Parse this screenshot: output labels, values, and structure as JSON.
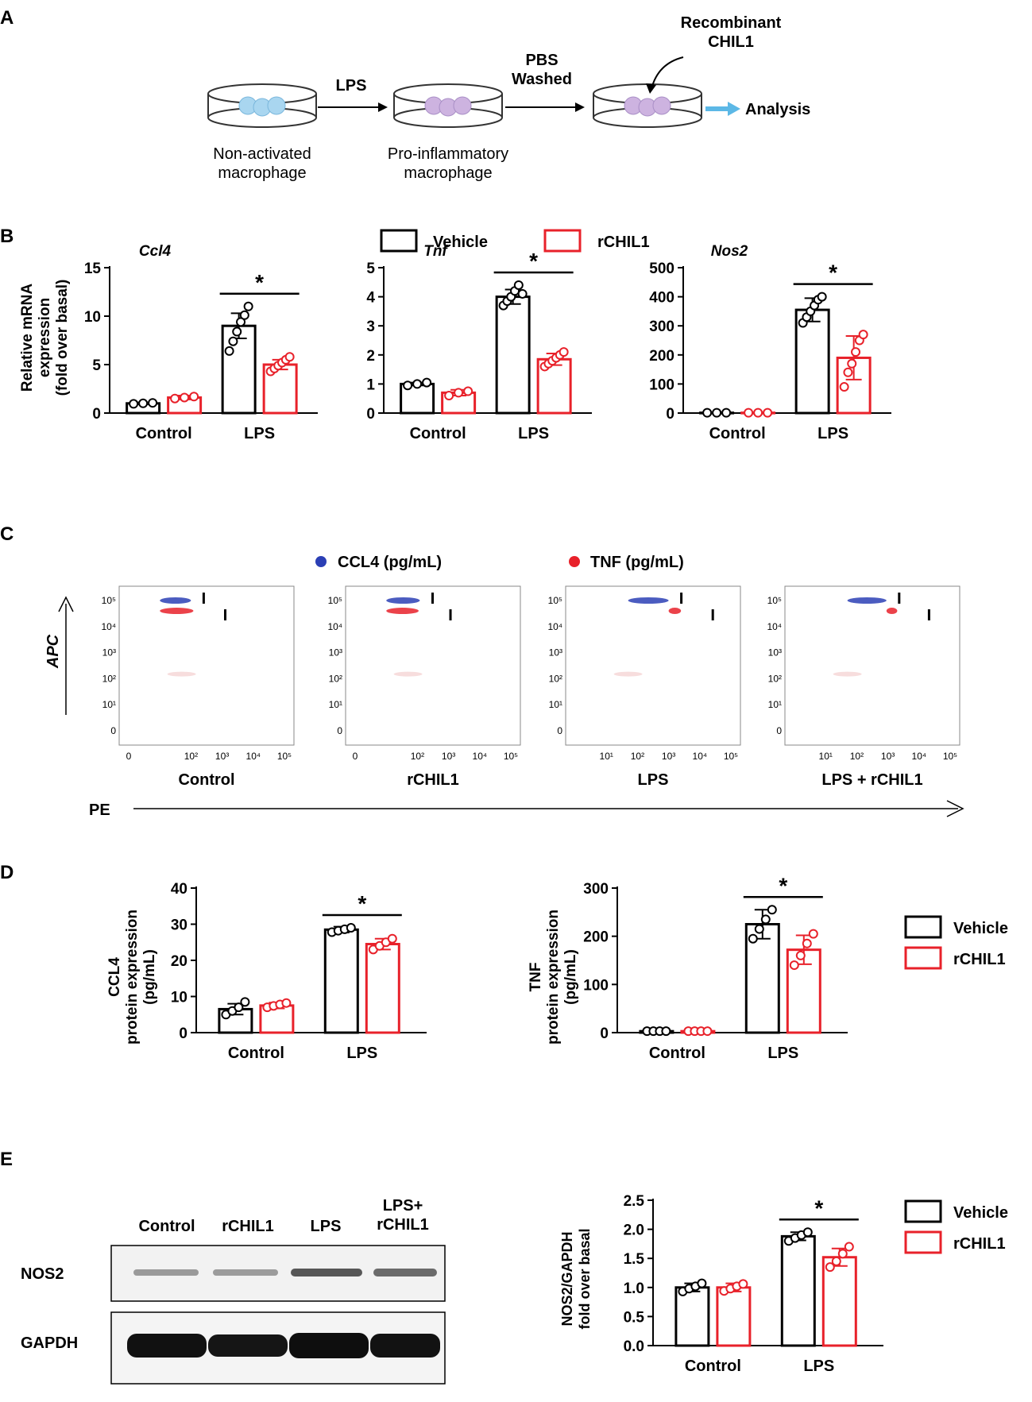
{
  "panels": {
    "a": {
      "label": "A",
      "step1": "LPS",
      "step2_line1": "PBS",
      "step2_line2": "Washed",
      "step3_line1": "Recombinant",
      "step3_line2": "CHIL1",
      "cell1_line1": "Non-activated",
      "cell1_line2": "macrophage",
      "cell2_line1": "Pro-inflammatory",
      "cell2_line2": "macrophage",
      "analysis": "Analysis"
    },
    "b": {
      "label": "B",
      "ylabel_line1": "Relative mRNA",
      "ylabel_line2": "expression",
      "ylabel_line3": "(fold over basal)"
    },
    "c": {
      "label": "C",
      "legend_ccl4": "CCL4 (pg/mL)",
      "legend_tnf": "TNF (pg/mL)",
      "y_axis": "APC",
      "x_axis": "PE",
      "y_ticks": [
        "10⁵",
        "10⁴",
        "10³",
        "10²",
        "10¹",
        "0"
      ],
      "x_ticks_a": [
        "0",
        "10²",
        "10³",
        "10⁴",
        "10⁵"
      ],
      "x_ticks_b": [
        "10¹",
        "10²",
        "10³",
        "10⁴",
        "10⁵"
      ],
      "plot_labels": [
        "Control",
        "rCHIL1",
        "LPS",
        "LPS + rCHIL1"
      ]
    },
    "d": {
      "label": "D",
      "ccl4_ylabel1": "CCL4",
      "ccl4_ylabel2": "protein expression",
      "ccl4_ylabel3": "(pg/mL)",
      "tnf_ylabel1": "TNF",
      "tnf_ylabel2": "protein expression",
      "tnf_ylabel3": "(pg/mL)"
    },
    "e": {
      "label": "E",
      "lane_labels": [
        "Control",
        "rCHIL1",
        "LPS"
      ],
      "lane4_line1": "LPS+",
      "lane4_line2": "rCHIL1",
      "nos2_row": "NOS2",
      "gapdh_row": "GAPDH",
      "ylabel1": "NOS2/GAPDH",
      "ylabel2": "fold over basal"
    }
  },
  "legend": {
    "vehicle": "Vehicle",
    "rchil1": "rCHIL1"
  },
  "colors": {
    "vehicle": "#000000",
    "rchil1": "#e8212a",
    "ccl4_dot": "#2b3fb5",
    "tnf_dot": "#e8212a",
    "arrow_blue": "#5cb8e6"
  },
  "chart_data": [
    {
      "type": "bar",
      "id": "ccl4_mrna",
      "title": "Ccl4",
      "categories": [
        "Control",
        "LPS"
      ],
      "ylim": [
        0,
        15
      ],
      "yticks": [
        0,
        5,
        10,
        15
      ],
      "series": [
        {
          "name": "Vehicle",
          "values": [
            1,
            9.0
          ],
          "err": [
            0.1,
            1.3
          ],
          "points": [
            [
              0.95,
              1.0,
              1.05
            ],
            [
              6.4,
              7.4,
              8.4,
              9.4,
              10.1,
              11.0
            ]
          ]
        },
        {
          "name": "rCHIL1",
          "values": [
            1.6,
            5.0
          ],
          "err": [
            0.2,
            0.5
          ],
          "points": [
            [
              1.5,
              1.6,
              1.7
            ],
            [
              4.3,
              4.6,
              4.9,
              5.2,
              5.5,
              5.8
            ]
          ]
        }
      ],
      "significance": "*"
    },
    {
      "type": "bar",
      "id": "tnf_mrna",
      "title": "Tnf",
      "categories": [
        "Control",
        "LPS"
      ],
      "ylim": [
        0,
        5
      ],
      "yticks": [
        0,
        1,
        2,
        3,
        4,
        5
      ],
      "series": [
        {
          "name": "Vehicle",
          "values": [
            1.0,
            4.0
          ],
          "err": [
            0.05,
            0.25
          ],
          "points": [
            [
              0.95,
              1.0,
              1.05
            ],
            [
              3.7,
              3.85,
              4.0,
              4.2,
              4.4,
              4.1
            ]
          ]
        },
        {
          "name": "rCHIL1",
          "values": [
            0.7,
            1.85
          ],
          "err": [
            0.1,
            0.2
          ],
          "points": [
            [
              0.6,
              0.7,
              0.75
            ],
            [
              1.6,
              1.7,
              1.8,
              1.9,
              2.0,
              2.1
            ]
          ]
        }
      ],
      "significance": "*"
    },
    {
      "type": "bar",
      "id": "nos2_mrna",
      "title": "Nos2",
      "categories": [
        "Control",
        "LPS"
      ],
      "ylim": [
        0,
        500
      ],
      "yticks": [
        0,
        100,
        200,
        300,
        400,
        500
      ],
      "series": [
        {
          "name": "Vehicle",
          "values": [
            1,
            355
          ],
          "err": [
            0,
            40
          ],
          "points": [
            [
              1,
              1,
              1
            ],
            [
              310,
              330,
              350,
              370,
              390,
              400
            ]
          ]
        },
        {
          "name": "rCHIL1",
          "values": [
            1,
            190
          ],
          "err": [
            0,
            75
          ],
          "points": [
            [
              1,
              1,
              1
            ],
            [
              90,
              140,
              170,
              210,
              250,
              270
            ]
          ]
        }
      ],
      "significance": "*"
    },
    {
      "type": "scatter",
      "id": "flow_control",
      "title": "Control",
      "series": [
        {
          "name": "CCL4",
          "x_range": [
            10,
            100
          ],
          "y": 100000
        },
        {
          "name": "TNF",
          "x_range": [
            10,
            120
          ],
          "y": 40000
        }
      ]
    },
    {
      "type": "scatter",
      "id": "flow_rchil1",
      "title": "rCHIL1",
      "series": [
        {
          "name": "CCL4",
          "x_range": [
            10,
            120
          ],
          "y": 100000
        },
        {
          "name": "TNF",
          "x_range": [
            10,
            110
          ],
          "y": 40000
        }
      ]
    },
    {
      "type": "scatter",
      "id": "flow_lps",
      "title": "LPS",
      "series": [
        {
          "name": "CCL4",
          "x_range": [
            50,
            1000
          ],
          "y": 100000
        },
        {
          "name": "TNF",
          "x_range": [
            1000,
            2500
          ],
          "y": 40000
        }
      ]
    },
    {
      "type": "scatter",
      "id": "flow_lps_rchil1",
      "title": "LPS + rCHIL1",
      "series": [
        {
          "name": "CCL4",
          "x_range": [
            50,
            900
          ],
          "y": 100000
        },
        {
          "name": "TNF",
          "x_range": [
            900,
            2000
          ],
          "y": 40000
        }
      ]
    },
    {
      "type": "bar",
      "id": "ccl4_protein",
      "title": "",
      "categories": [
        "Control",
        "LPS"
      ],
      "ylim": [
        0,
        40
      ],
      "yticks": [
        0,
        10,
        20,
        30,
        40
      ],
      "series": [
        {
          "name": "Vehicle",
          "values": [
            6.5,
            28.5
          ],
          "err": [
            1.5,
            0.8
          ],
          "points": [
            [
              5,
              6,
              7,
              8.5
            ],
            [
              27.8,
              28.2,
              28.6,
              29
            ]
          ]
        },
        {
          "name": "rCHIL1",
          "values": [
            7.5,
            24.5
          ],
          "err": [
            0.8,
            1.5
          ],
          "points": [
            [
              7,
              7.4,
              7.8,
              8.2
            ],
            [
              23,
              24,
              25,
              26
            ]
          ]
        }
      ],
      "significance": "*"
    },
    {
      "type": "bar",
      "id": "tnf_protein",
      "title": "",
      "categories": [
        "Control",
        "LPS"
      ],
      "ylim": [
        0,
        300
      ],
      "yticks": [
        0,
        100,
        200,
        300
      ],
      "series": [
        {
          "name": "Vehicle",
          "values": [
            3,
            225
          ],
          "err": [
            0,
            30
          ],
          "points": [
            [
              3,
              3,
              3,
              3
            ],
            [
              195,
              215,
              235,
              255
            ]
          ]
        },
        {
          "name": "rCHIL1",
          "values": [
            3,
            172
          ],
          "err": [
            0,
            30
          ],
          "points": [
            [
              3,
              3,
              3,
              3
            ],
            [
              140,
              160,
              185,
              205
            ]
          ]
        }
      ],
      "significance": "*"
    },
    {
      "type": "bar",
      "id": "nos2_protein",
      "title": "",
      "categories": [
        "Control",
        "LPS"
      ],
      "ylim": [
        0,
        2.5
      ],
      "yticks": [
        0,
        0.5,
        1.0,
        1.5,
        2.0,
        2.5
      ],
      "series": [
        {
          "name": "Vehicle",
          "values": [
            1.0,
            1.88
          ],
          "err": [
            0.07,
            0.07
          ],
          "points": [
            [
              0.93,
              0.98,
              1.02,
              1.07
            ],
            [
              1.8,
              1.85,
              1.9,
              1.95
            ]
          ]
        },
        {
          "name": "rCHIL1",
          "values": [
            1.0,
            1.52
          ],
          "err": [
            0.07,
            0.15
          ],
          "points": [
            [
              0.94,
              0.98,
              1.02,
              1.06
            ],
            [
              1.35,
              1.45,
              1.58,
              1.7
            ]
          ]
        }
      ],
      "significance": "*"
    }
  ]
}
